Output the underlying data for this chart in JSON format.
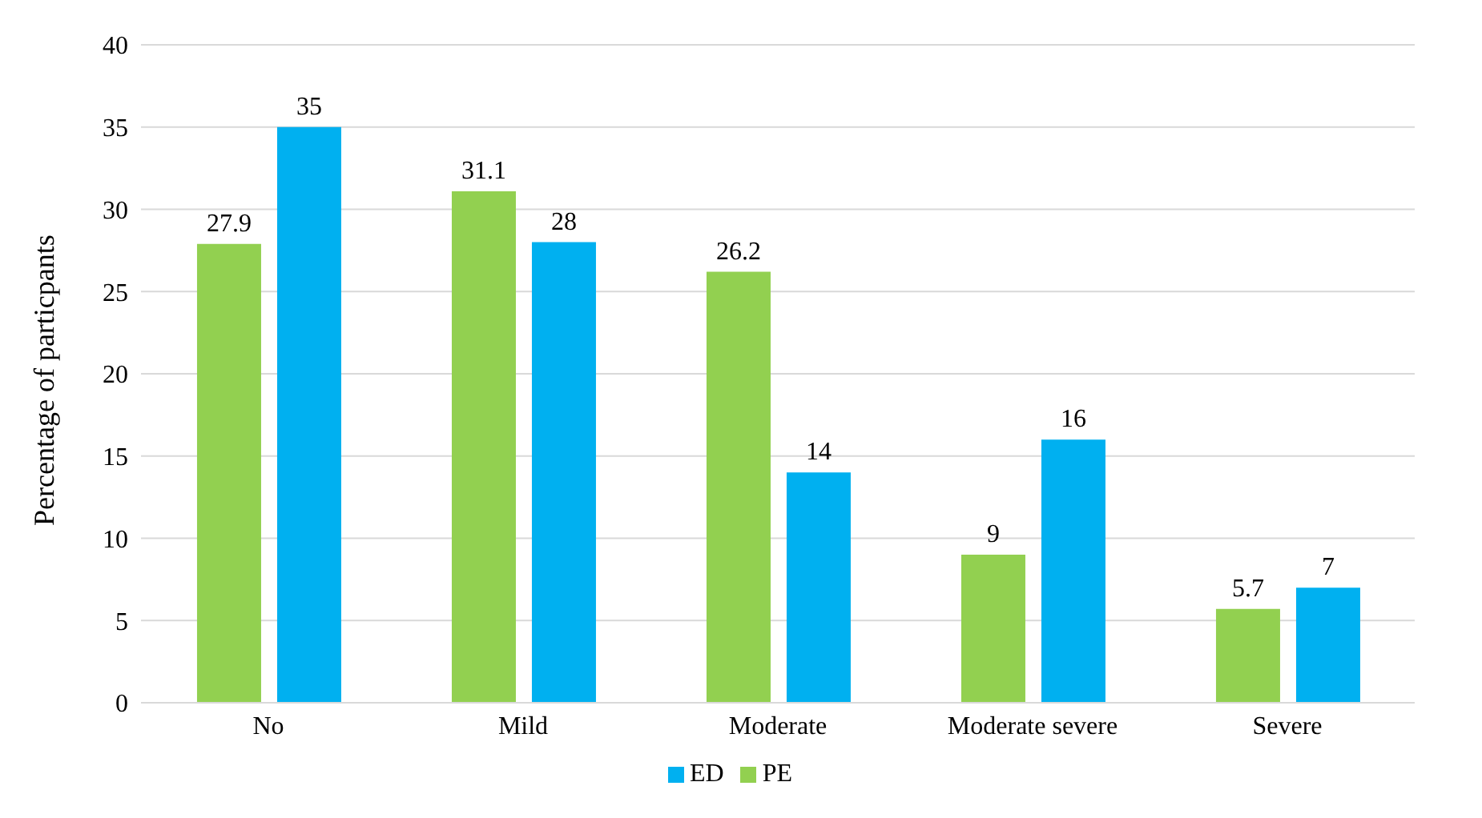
{
  "chart_data": {
    "type": "bar",
    "ylabel": "Percentage of particpants",
    "categories": [
      "No",
      "Mild",
      "Moderate",
      "Moderate severe",
      "Severe"
    ],
    "series": [
      {
        "name": "PE",
        "color": "#92d050",
        "values": [
          27.9,
          31.1,
          26.2,
          9,
          5.7
        ]
      },
      {
        "name": "ED",
        "color": "#00b0f0",
        "values": [
          35,
          28,
          14,
          16,
          7
        ]
      }
    ],
    "ylim": [
      0,
      40
    ],
    "yticks": [
      0,
      5,
      10,
      15,
      20,
      25,
      30,
      35,
      40
    ],
    "grid": "y",
    "legend": "bottom",
    "data_labels": true
  }
}
